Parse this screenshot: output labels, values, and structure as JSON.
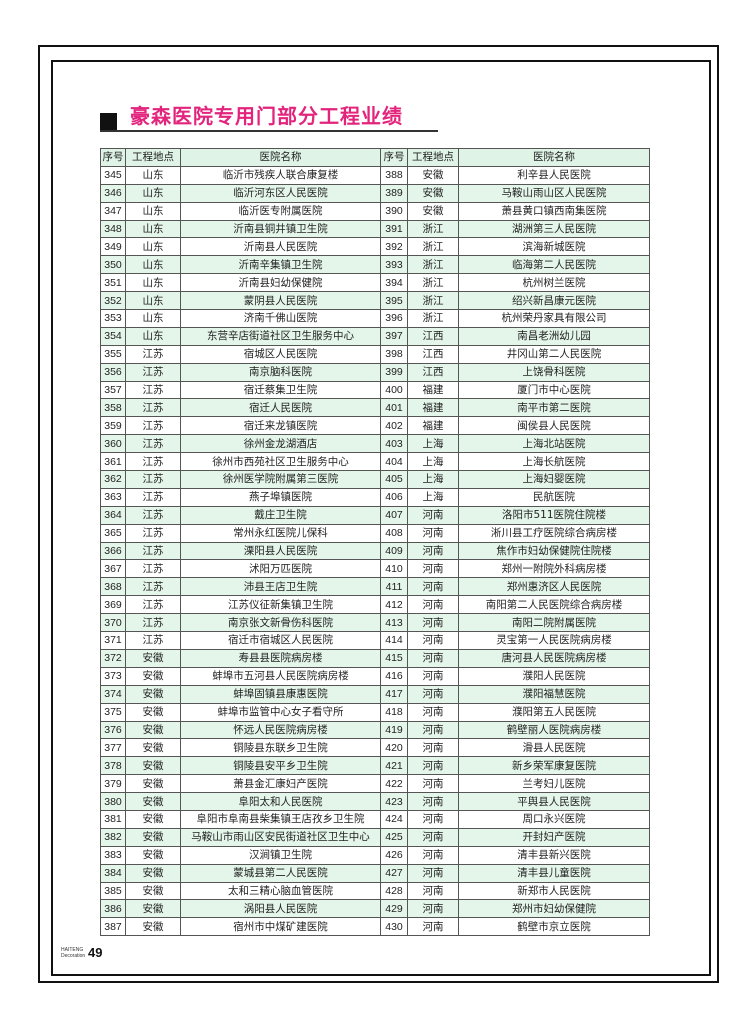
{
  "title": "豪森医院专用门部分工程业绩",
  "headers": [
    "序号",
    "工程地点",
    "医院名称",
    "序号",
    "工程地点",
    "医院名称"
  ],
  "colors": {
    "title": "#e3247c",
    "row_alt": "#e4f5ea",
    "header": "#dff3e6"
  },
  "rows": [
    [
      [
        "345",
        "山东",
        "临沂市残疾人联合康复楼"
      ],
      [
        "388",
        "安徽",
        "利辛县人民医院"
      ]
    ],
    [
      [
        "346",
        "山东",
        "临沂河东区人民医院"
      ],
      [
        "389",
        "安徽",
        "马鞍山雨山区人民医院"
      ]
    ],
    [
      [
        "347",
        "山东",
        "临沂医专附属医院"
      ],
      [
        "390",
        "安徽",
        "萧县黄口镇西南集医院"
      ]
    ],
    [
      [
        "348",
        "山东",
        "沂南县铜井镇卫生院"
      ],
      [
        "391",
        "浙江",
        "湖洲第三人民医院"
      ]
    ],
    [
      [
        "349",
        "山东",
        "沂南县人民医院"
      ],
      [
        "392",
        "浙江",
        "滨海新城医院"
      ]
    ],
    [
      [
        "350",
        "山东",
        "沂南辛集镇卫生院"
      ],
      [
        "393",
        "浙江",
        "临海第二人民医院"
      ]
    ],
    [
      [
        "351",
        "山东",
        "沂南县妇幼保健院"
      ],
      [
        "394",
        "浙江",
        "杭州树兰医院"
      ]
    ],
    [
      [
        "352",
        "山东",
        "蒙阴县人民医院"
      ],
      [
        "395",
        "浙江",
        "绍兴新昌康元医院"
      ]
    ],
    [
      [
        "353",
        "山东",
        "济南千佛山医院"
      ],
      [
        "396",
        "浙江",
        "杭州荣丹家具有限公司"
      ]
    ],
    [
      [
        "354",
        "山东",
        "东营辛店街道社区卫生服务中心"
      ],
      [
        "397",
        "江西",
        "南昌老洲幼儿园"
      ]
    ],
    [
      [
        "355",
        "江苏",
        "宿城区人民医院"
      ],
      [
        "398",
        "江西",
        "井冈山第二人民医院"
      ]
    ],
    [
      [
        "356",
        "江苏",
        "南京脑科医院"
      ],
      [
        "399",
        "江西",
        "上饶骨科医院"
      ]
    ],
    [
      [
        "357",
        "江苏",
        "宿迁蔡集卫生院"
      ],
      [
        "400",
        "福建",
        "厦门市中心医院"
      ]
    ],
    [
      [
        "358",
        "江苏",
        "宿迁人民医院"
      ],
      [
        "401",
        "福建",
        "南平市第二医院"
      ]
    ],
    [
      [
        "359",
        "江苏",
        "宿迁来龙镇医院"
      ],
      [
        "402",
        "福建",
        "闽侯县人民医院"
      ]
    ],
    [
      [
        "360",
        "江苏",
        "徐州金龙湖酒店"
      ],
      [
        "403",
        "上海",
        "上海北站医院"
      ]
    ],
    [
      [
        "361",
        "江苏",
        "徐州市西苑社区卫生服务中心"
      ],
      [
        "404",
        "上海",
        "上海长航医院"
      ]
    ],
    [
      [
        "362",
        "江苏",
        "徐州医学院附属第三医院"
      ],
      [
        "405",
        "上海",
        "上海妇婴医院"
      ]
    ],
    [
      [
        "363",
        "江苏",
        "燕子埠镇医院"
      ],
      [
        "406",
        "上海",
        "民航医院"
      ]
    ],
    [
      [
        "364",
        "江苏",
        "戴庄卫生院"
      ],
      [
        "407",
        "河南",
        "洛阳市511医院住院楼"
      ]
    ],
    [
      [
        "365",
        "江苏",
        "常州永红医院儿保科"
      ],
      [
        "408",
        "河南",
        "淅川县工疗医院综合病房楼"
      ]
    ],
    [
      [
        "366",
        "江苏",
        "溧阳县人民医院"
      ],
      [
        "409",
        "河南",
        "焦作市妇幼保健院住院楼"
      ]
    ],
    [
      [
        "367",
        "江苏",
        "沭阳万匹医院"
      ],
      [
        "410",
        "河南",
        "郑州一附院外科病房楼"
      ]
    ],
    [
      [
        "368",
        "江苏",
        "沛县王店卫生院"
      ],
      [
        "411",
        "河南",
        "郑州惠济区人民医院"
      ]
    ],
    [
      [
        "369",
        "江苏",
        "江苏仪征新集镇卫生院"
      ],
      [
        "412",
        "河南",
        "南阳第二人民医院综合病房楼"
      ]
    ],
    [
      [
        "370",
        "江苏",
        "南京张文新骨伤科医院"
      ],
      [
        "413",
        "河南",
        "南阳二院附属医院"
      ]
    ],
    [
      [
        "371",
        "江苏",
        "宿迁市宿城区人民医院"
      ],
      [
        "414",
        "河南",
        "灵宝第一人民医院病房楼"
      ]
    ],
    [
      [
        "372",
        "安徽",
        "寿县县医院病房楼"
      ],
      [
        "415",
        "河南",
        "唐河县人民医院病房楼"
      ]
    ],
    [
      [
        "373",
        "安徽",
        "蚌埠市五河县人民医院病房楼"
      ],
      [
        "416",
        "河南",
        "濮阳人民医院"
      ]
    ],
    [
      [
        "374",
        "安徽",
        "蚌埠固镇县康惠医院"
      ],
      [
        "417",
        "河南",
        "濮阳福慧医院"
      ]
    ],
    [
      [
        "375",
        "安徽",
        "蚌埠市监管中心女子看守所"
      ],
      [
        "418",
        "河南",
        "濮阳第五人民医院"
      ]
    ],
    [
      [
        "376",
        "安徽",
        "怀远人民医院病房楼"
      ],
      [
        "419",
        "河南",
        "鹤壁丽人医院病房楼"
      ]
    ],
    [
      [
        "377",
        "安徽",
        "铜陵县东联乡卫生院"
      ],
      [
        "420",
        "河南",
        "滑县人民医院"
      ]
    ],
    [
      [
        "378",
        "安徽",
        "铜陵县安平乡卫生院"
      ],
      [
        "421",
        "河南",
        "新乡荣军康复医院"
      ]
    ],
    [
      [
        "379",
        "安徽",
        "萧县金汇康妇产医院"
      ],
      [
        "422",
        "河南",
        "兰考妇儿医院"
      ]
    ],
    [
      [
        "380",
        "安徽",
        "阜阳太和人民医院"
      ],
      [
        "423",
        "河南",
        "平舆县人民医院"
      ]
    ],
    [
      [
        "381",
        "安徽",
        "阜阳市阜南县柴集镇王店孜乡卫生院"
      ],
      [
        "424",
        "河南",
        "周口永兴医院"
      ]
    ],
    [
      [
        "382",
        "安徽",
        "马鞍山市雨山区安民街道社区卫生中心"
      ],
      [
        "425",
        "河南",
        "开封妇产医院"
      ]
    ],
    [
      [
        "383",
        "安徽",
        "汉涧镇卫生院"
      ],
      [
        "426",
        "河南",
        "清丰县新兴医院"
      ]
    ],
    [
      [
        "384",
        "安徽",
        "蒙城县第二人民医院"
      ],
      [
        "427",
        "河南",
        "清丰县儿童医院"
      ]
    ],
    [
      [
        "385",
        "安徽",
        "太和三精心脑血管医院"
      ],
      [
        "428",
        "河南",
        "新郑市人民医院"
      ]
    ],
    [
      [
        "386",
        "安徽",
        "涡阳县人民医院"
      ],
      [
        "429",
        "河南",
        "郑州市妇幼保健院"
      ]
    ],
    [
      [
        "387",
        "安徽",
        "宿州市中煤矿建医院"
      ],
      [
        "430",
        "河南",
        "鹤壁市京立医院"
      ]
    ]
  ],
  "footer": {
    "brand_line1": "HAITENG",
    "brand_line2": "Decoration",
    "page_number": "49"
  }
}
